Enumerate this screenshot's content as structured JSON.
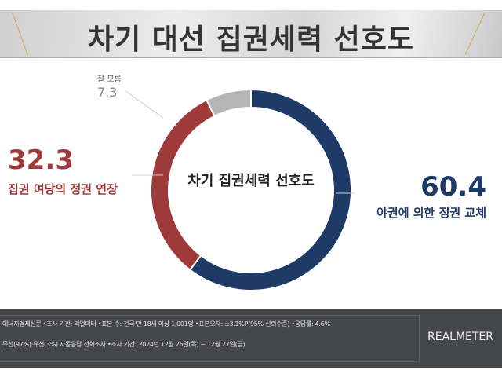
{
  "title": "차기 대선 집권세력 선호도",
  "chart_data": {
    "type": "pie",
    "title": "차기 집권세력 선호도",
    "categories": [
      "야권에 의한 정권 교체",
      "집권 여당의 정권 연장",
      "잘 모름"
    ],
    "values": [
      60.4,
      32.3,
      7.3
    ],
    "value_labels": [
      "60.4",
      "32.3",
      "7.3"
    ],
    "colors": [
      "#1e3a66",
      "#9e3b3a",
      "#b5b5b5"
    ]
  },
  "footer": {
    "line1": "에너지경제신문  •조사 기관: 리얼미터 •표본 수: 전국 만 18세 이상 1,001명 •표본오차: ±3.1%P(95% 신뢰수준) •응답률: 4.6%",
    "line2": "무선(97%)·유선(3%) 자동응답 전화조사 •조사 기간: 2024년 12월 26일(목) ~ 12월 27일(금)",
    "logo": "REALMETER"
  }
}
